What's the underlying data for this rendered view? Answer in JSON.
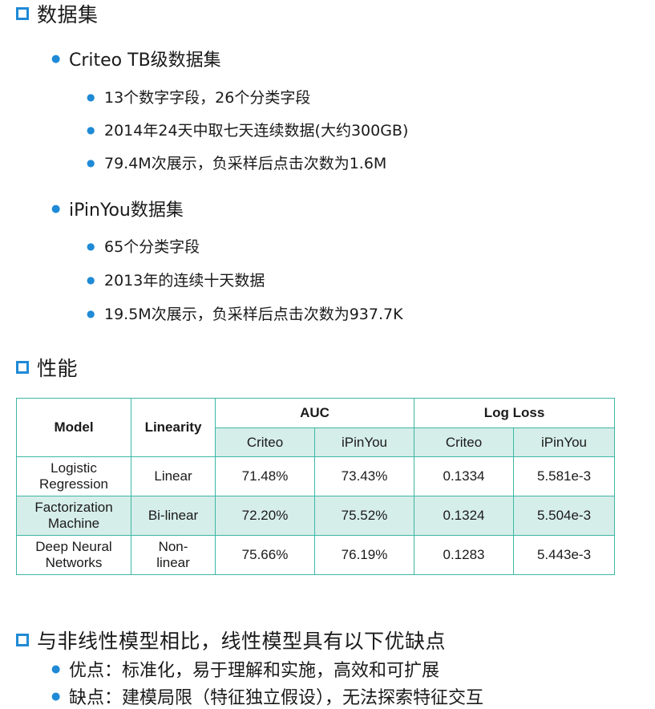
{
  "dataset_section": {
    "title": "数据集",
    "criteo": {
      "title": "Criteo TB级数据集",
      "items": [
        "13个数字字段，26个分类字段",
        "2014年24天中取七天连续数据(大约300GB)",
        "79.4M次展示，负采样后点击次数为1.6M"
      ]
    },
    "ipinyou": {
      "title": "iPinYou数据集",
      "items": [
        "65个分类字段",
        "2013年的连续十天数据",
        "19.5M次展示，负采样后点击次数为937.7K"
      ]
    }
  },
  "performance_section": {
    "title": "性能",
    "table": {
      "headers": {
        "model": "Model",
        "linearity": "Linearity",
        "auc": "AUC",
        "logloss": "Log Loss",
        "criteo": "Criteo",
        "ipinyou": "iPinYou"
      },
      "rows": [
        {
          "model_line1": "Logistic",
          "model_line2": "Regression",
          "linearity": "Linear",
          "auc_criteo": "71.48%",
          "auc_ipinyou": "73.43%",
          "ll_criteo": "0.1334",
          "ll_ipinyou": "5.581e-3"
        },
        {
          "model_line1": "Factorization",
          "model_line2": "Machine",
          "linearity": "Bi-linear",
          "auc_criteo": "72.20%",
          "auc_ipinyou": "75.52%",
          "ll_criteo": "0.1324",
          "ll_ipinyou": "5.504e-3"
        },
        {
          "model_line1": "Deep Neural",
          "model_line2": "Networks",
          "linearity_line1": "Non-",
          "linearity_line2": "linear",
          "auc_criteo": "75.66%",
          "auc_ipinyou": "76.19%",
          "ll_criteo": "0.1283",
          "ll_ipinyou": "5.443e-3"
        }
      ]
    }
  },
  "comparison_section": {
    "title": "与非线性模型相比，线性模型具有以下优缺点",
    "items": [
      "优点：标准化，易于理解和实施，高效和可扩展",
      "缺点：建模局限（特征独立假设），无法探索特征交互"
    ]
  },
  "colors": {
    "accent_blue": "#1f8ad6",
    "table_teal": "#3db7a6",
    "row_highlight": "#d6eee9"
  }
}
